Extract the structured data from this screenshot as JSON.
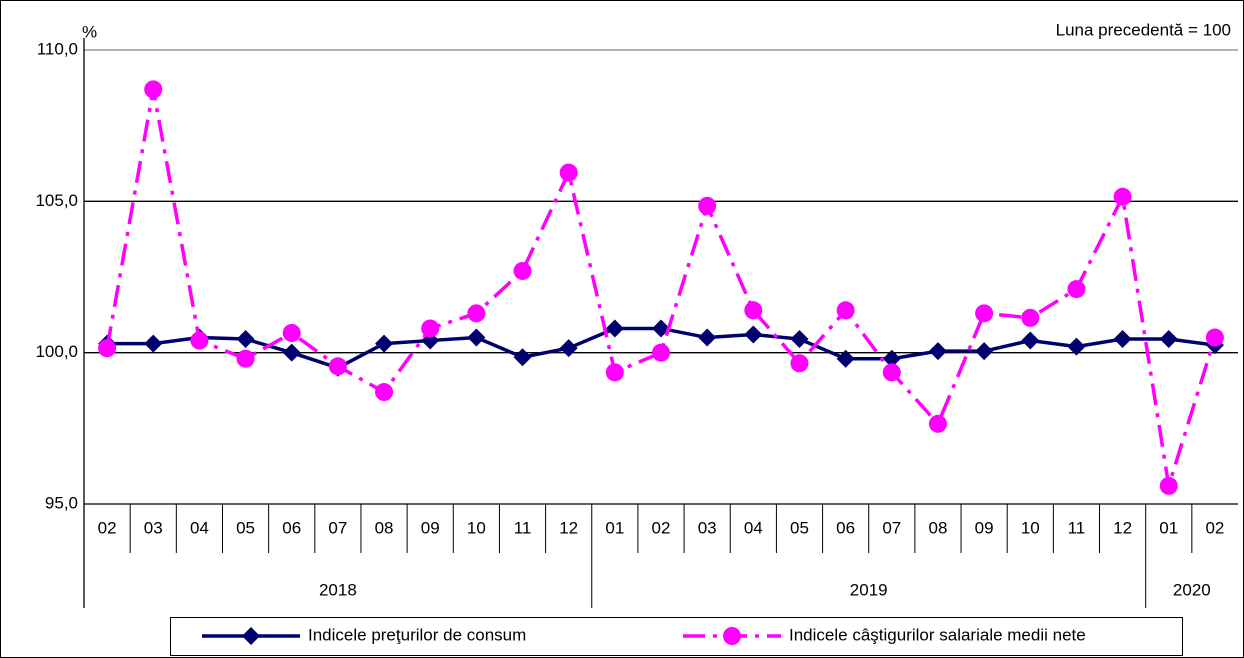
{
  "chart_data": {
    "type": "line",
    "y_unit": "%",
    "annotation": "Luna precedentă = 100",
    "categories": [
      "02",
      "03",
      "04",
      "05",
      "06",
      "07",
      "08",
      "09",
      "10",
      "11",
      "12",
      "01",
      "02",
      "03",
      "04",
      "05",
      "06",
      "07",
      "08",
      "09",
      "10",
      "11",
      "12",
      "01",
      "02"
    ],
    "year_groups": [
      "2018",
      "2019",
      "2020"
    ],
    "series": [
      {
        "name": "Indicele preţurilor de consum",
        "color": "#00006e",
        "marker": "diamond",
        "dash": "solid",
        "values": [
          100.3,
          100.3,
          100.5,
          100.45,
          100.0,
          99.5,
          100.3,
          100.4,
          100.5,
          99.85,
          100.15,
          100.8,
          100.8,
          100.5,
          100.6,
          100.45,
          99.8,
          99.8,
          100.05,
          100.05,
          100.4,
          100.2,
          100.45,
          100.45,
          100.25
        ]
      },
      {
        "name": "Indicele câştigurilor salariale medii nete",
        "color": "#ff00ff",
        "marker": "circle",
        "dash": "dashdot",
        "values": [
          100.15,
          108.7,
          100.4,
          99.8,
          100.65,
          99.55,
          98.7,
          100.8,
          101.3,
          102.7,
          105.95,
          99.35,
          100.0,
          104.85,
          101.4,
          99.65,
          101.4,
          99.35,
          97.65,
          101.3,
          101.15,
          102.1,
          105.15,
          95.6,
          100.5
        ]
      }
    ],
    "ylim": [
      95,
      110
    ],
    "yticks": [
      {
        "value": 95,
        "label": "95,0"
      },
      {
        "value": 100,
        "label": "100,0"
      },
      {
        "value": 105,
        "label": "105,0"
      },
      {
        "value": 110,
        "label": "110,0"
      }
    ],
    "grid": true
  }
}
